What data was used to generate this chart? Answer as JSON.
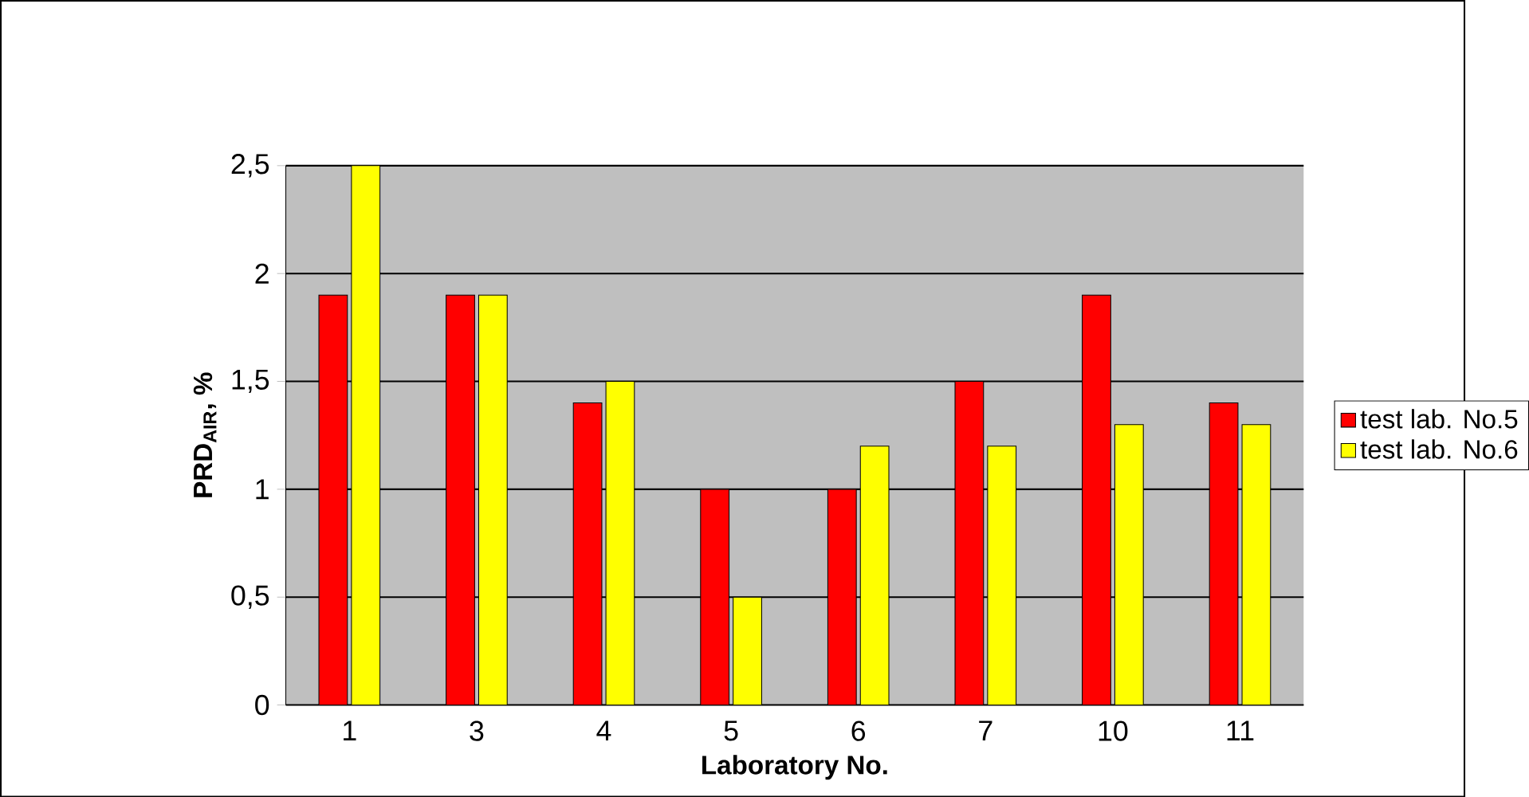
{
  "chart_data": {
    "type": "bar",
    "xlabel": "Laboratory No.",
    "ylabel": "PRD$_{AIR}$, %",
    "categories": [
      "1",
      "3",
      "4",
      "5",
      "6",
      "7",
      "10",
      "11"
    ],
    "series": [
      {
        "name": "test lab. No.5",
        "color": "#ff0000",
        "values": [
          1.9,
          1.9,
          1.4,
          1.0,
          1.0,
          1.5,
          1.9,
          1.4
        ]
      },
      {
        "name": "test lab. No.6",
        "color": "#ffff00",
        "values": [
          2.5,
          1.9,
          1.5,
          0.5,
          1.2,
          1.2,
          1.3,
          1.3
        ]
      }
    ],
    "ylim": [
      0,
      2.5
    ],
    "yticks": [
      {
        "value": 0,
        "label": "0"
      },
      {
        "value": 0.5,
        "label": "0,5"
      },
      {
        "value": 1,
        "label": "1"
      },
      {
        "value": 1.5,
        "label": "1,5"
      },
      {
        "value": 2,
        "label": "2"
      },
      {
        "value": 2.5,
        "label": "2,5"
      }
    ],
    "grid": "y",
    "legend": "right"
  }
}
